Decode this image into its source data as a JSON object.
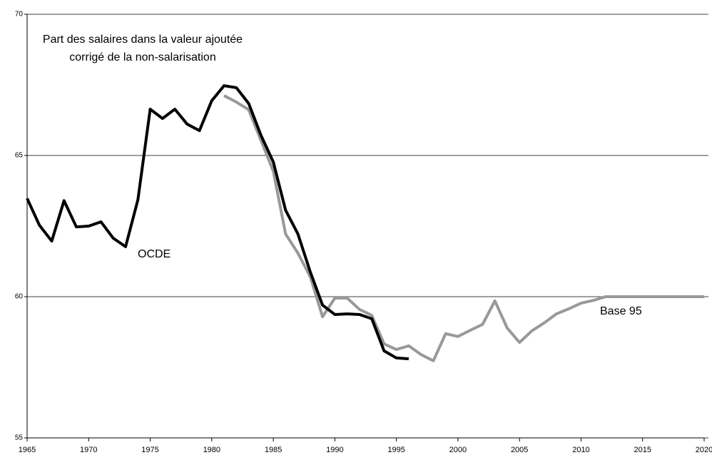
{
  "chart_data": {
    "type": "line",
    "title": [
      "Part des salaires dans la valeur ajoutée",
      "corrigé de la non-salarisation"
    ],
    "xlim": [
      1965,
      2020
    ],
    "xticks": [
      1965,
      1970,
      1975,
      1980,
      1985,
      1990,
      1995,
      2000,
      2005,
      2010,
      2015,
      2020
    ],
    "ylim": [
      55,
      70
    ],
    "yticks": [
      55,
      60,
      65,
      70
    ],
    "grid": true,
    "series": [
      {
        "name": "OCDE",
        "color": "#000000",
        "x": [
          1965,
          1966,
          1967,
          1968,
          1969,
          1970,
          1971,
          1972,
          1973,
          1974,
          1975,
          1976,
          1977,
          1978,
          1979,
          1980,
          1981,
          1982,
          1983,
          1984,
          1985,
          1986,
          1987,
          1988,
          1989,
          1990,
          1991,
          1992,
          1993,
          1994,
          1995,
          1996
        ],
        "values": [
          63.48,
          62.53,
          61.97,
          63.4,
          62.47,
          62.5,
          62.65,
          62.07,
          61.77,
          63.43,
          66.64,
          66.31,
          66.64,
          66.11,
          65.88,
          66.94,
          67.47,
          67.4,
          66.84,
          65.71,
          64.77,
          63.06,
          62.22,
          60.88,
          59.7,
          59.37,
          59.39,
          59.37,
          59.22,
          58.08,
          57.83,
          57.8
        ]
      },
      {
        "name": "Base 95",
        "color": "#999999",
        "x": [
          1981,
          1982,
          1983,
          1984,
          1985,
          1986,
          1987,
          1988,
          1989,
          1990,
          1991,
          1992,
          1993,
          1994,
          1995,
          1996,
          1997,
          1998,
          1999,
          2000,
          2001,
          2002,
          2003,
          2004,
          2005,
          2006,
          2007,
          2008,
          2009,
          2010,
          2011,
          2012,
          2013,
          2014,
          2015,
          2016,
          2017,
          2018,
          2019,
          2020
        ],
        "values": [
          67.12,
          66.89,
          66.62,
          65.53,
          64.44,
          62.22,
          61.54,
          60.71,
          59.29,
          59.95,
          59.95,
          59.55,
          59.34,
          58.33,
          58.13,
          58.26,
          57.95,
          57.73,
          58.69,
          58.59,
          58.81,
          59.02,
          59.85,
          58.89,
          58.38,
          58.79,
          59.07,
          59.39,
          59.57,
          59.77,
          59.87,
          60,
          60,
          60,
          60,
          60,
          60,
          60,
          60,
          60
        ]
      }
    ]
  }
}
